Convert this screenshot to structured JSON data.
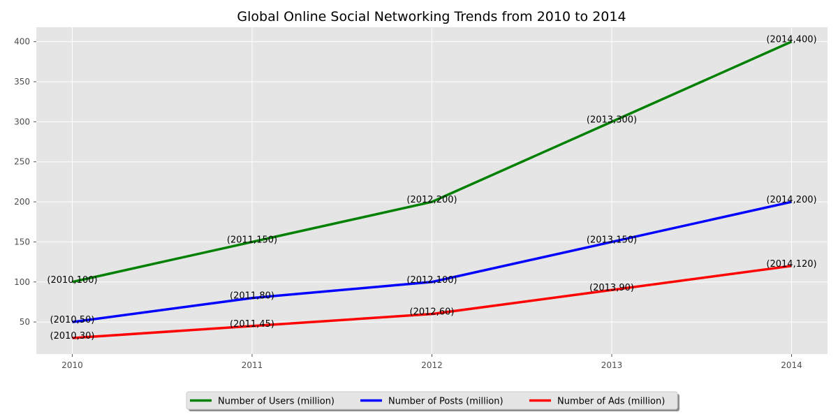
{
  "chart_data": {
    "type": "line",
    "title": "Global Online Social Networking Trends from 2010 to 2014",
    "x": [
      2010,
      2011,
      2012,
      2013,
      2014
    ],
    "x_ticks": [
      "2010",
      "2011",
      "2012",
      "2013",
      "2014"
    ],
    "xlim": [
      2009.8,
      2014.2
    ],
    "ylim": [
      10,
      418
    ],
    "y_ticks": [
      50,
      100,
      150,
      200,
      250,
      300,
      350,
      400
    ],
    "grid": true,
    "legend_position": "bottom-center",
    "colors": {
      "plot_background": "#e5e5e5",
      "grid": "#ffffff"
    },
    "series": [
      {
        "name": "Number of Users (million)",
        "color": "#008000",
        "values": [
          100,
          150,
          200,
          300,
          400
        ],
        "labels": [
          "(2010,100)",
          "(2011,150)",
          "(2012,200)",
          "(2013,300)",
          "(2014,400)"
        ]
      },
      {
        "name": "Number of Posts (million)",
        "color": "#0000ff",
        "values": [
          50,
          80,
          100,
          150,
          200
        ],
        "labels": [
          "(2010,50)",
          "(2011,80)",
          "(2012,100)",
          "(2013,150)",
          "(2014,200)"
        ]
      },
      {
        "name": "Number of Ads (million)",
        "color": "#ff0000",
        "values": [
          30,
          45,
          60,
          90,
          120
        ],
        "labels": [
          "(2010,30)",
          "(2011,45)",
          "(2012,60)",
          "(2013,90)",
          "(2014,120)"
        ]
      }
    ]
  }
}
